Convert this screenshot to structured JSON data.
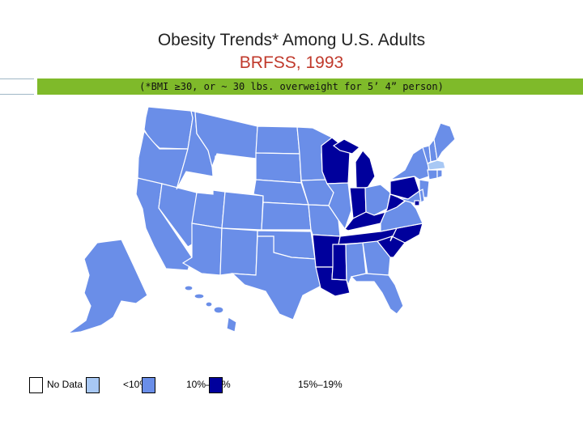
{
  "title": "Obesity Trends* Among U.S. Adults",
  "subtitle": "BRFSS, 1993",
  "note": "(*BMI ≥30, or ~ 30 lbs. overweight for 5’ 4” person)",
  "colors": {
    "title": "#222222",
    "subtitle": "#c0392b",
    "accent_bar": "#7fba2a",
    "no_data": "#ffffff",
    "lt10": "#a8c8f4",
    "c10_14": "#6a8ee8",
    "c15_19": "#00009c",
    "state_border": "#ffffff"
  },
  "legend": [
    {
      "key": "no_data",
      "label": "No Data"
    },
    {
      "key": "lt10",
      "label": "<10%"
    },
    {
      "key": "c10_14",
      "label": "10%–14%"
    },
    {
      "key": "c15_19",
      "label": "15%–19%"
    }
  ],
  "map": {
    "no_data_states": [
      "WY"
    ],
    "lt10_states": [
      "MA"
    ],
    "c15_19_states": [
      "WI",
      "MI",
      "IN",
      "KY",
      "WV",
      "PA",
      "TN",
      "NC",
      "SC",
      "AR",
      "LA",
      "MS",
      "DC"
    ],
    "c10_14_states": [
      "WA",
      "OR",
      "CA",
      "NV",
      "ID",
      "MT",
      "UT",
      "AZ",
      "CO",
      "NM",
      "ND",
      "SD",
      "NE",
      "KS",
      "OK",
      "TX",
      "MN",
      "IA",
      "MO",
      "IL",
      "OH",
      "NY",
      "VT",
      "NH",
      "ME",
      "CT",
      "RI",
      "NJ",
      "DE",
      "MD",
      "VA",
      "GA",
      "AL",
      "FL",
      "AK",
      "HI"
    ]
  }
}
